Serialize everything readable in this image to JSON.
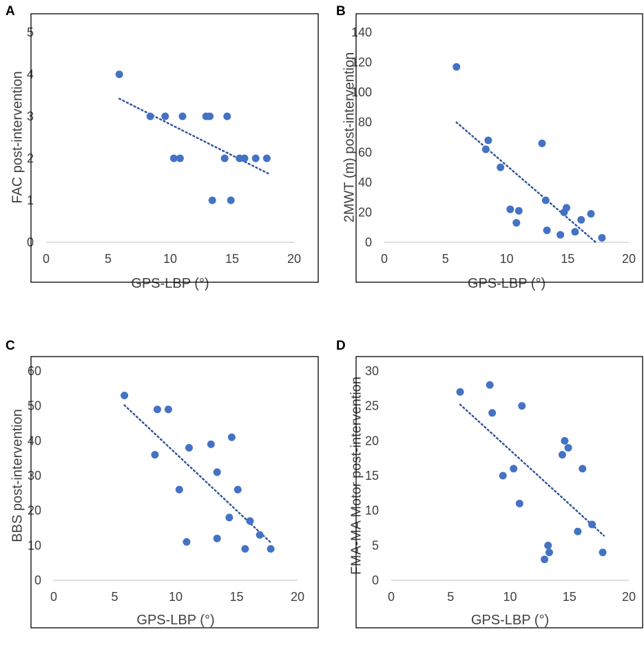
{
  "colors": {
    "point": "#4472C4",
    "trend": "#2F5597",
    "frame": "#000000",
    "text": "#404040",
    "panel_label": "#000000"
  },
  "chart_data": [
    {
      "id": "A",
      "type": "scatter",
      "panel_label": "A",
      "xlabel": "GPS-LBP (°)",
      "ylabel": "FAC post-intervention",
      "xlim": [
        0,
        20
      ],
      "ylim": [
        0,
        5
      ],
      "xticks": [
        "0",
        "5",
        "10",
        "15",
        "20"
      ],
      "yticks": [
        "0",
        "1",
        "2",
        "3",
        "4",
        "5"
      ],
      "points": [
        [
          5.9,
          4
        ],
        [
          8.4,
          3
        ],
        [
          9.6,
          3
        ],
        [
          10.3,
          2
        ],
        [
          10.8,
          2
        ],
        [
          11.0,
          3
        ],
        [
          12.9,
          3
        ],
        [
          13.2,
          3
        ],
        [
          13.4,
          1
        ],
        [
          14.4,
          2
        ],
        [
          14.6,
          3
        ],
        [
          14.9,
          1
        ],
        [
          15.6,
          2
        ],
        [
          16.0,
          2
        ],
        [
          16.9,
          2
        ],
        [
          17.8,
          2
        ]
      ],
      "trendline": {
        "x": [
          5.9,
          17.9
        ],
        "y": [
          3.42,
          1.64
        ]
      }
    },
    {
      "id": "B",
      "type": "scatter",
      "panel_label": "B",
      "xlabel": "GPS-LBP (°)",
      "ylabel": "2MWT (m) post-intervention",
      "xlim": [
        0,
        20
      ],
      "ylim": [
        0,
        140
      ],
      "xticks": [
        "0",
        "5",
        "10",
        "15",
        "20"
      ],
      "yticks": [
        "0",
        "20",
        "40",
        "60",
        "80",
        "100",
        "120",
        "140"
      ],
      "points": [
        [
          5.9,
          117
        ],
        [
          8.3,
          62
        ],
        [
          8.5,
          68
        ],
        [
          9.5,
          50
        ],
        [
          10.3,
          22
        ],
        [
          10.8,
          13
        ],
        [
          11.0,
          21
        ],
        [
          12.9,
          66
        ],
        [
          13.2,
          28
        ],
        [
          13.3,
          8
        ],
        [
          14.4,
          5
        ],
        [
          14.7,
          20
        ],
        [
          14.9,
          23
        ],
        [
          15.6,
          7
        ],
        [
          16.1,
          15
        ],
        [
          16.9,
          19
        ],
        [
          17.8,
          3
        ]
      ],
      "trendline": {
        "x": [
          5.9,
          17.3
        ],
        "y": [
          80,
          0
        ]
      }
    },
    {
      "id": "C",
      "type": "scatter",
      "panel_label": "C",
      "xlabel": "GPS-LBP (°)",
      "ylabel": "BBS post-intervention",
      "xlim": [
        0,
        20
      ],
      "ylim": [
        0,
        60
      ],
      "xticks": [
        "0",
        "5",
        "10",
        "15",
        "20"
      ],
      "yticks": [
        "0",
        "10",
        "20",
        "30",
        "40",
        "50",
        "60"
      ],
      "points": [
        [
          5.8,
          53
        ],
        [
          8.3,
          36
        ],
        [
          8.5,
          49
        ],
        [
          9.4,
          49
        ],
        [
          10.3,
          26
        ],
        [
          10.9,
          11
        ],
        [
          11.1,
          38
        ],
        [
          12.9,
          39
        ],
        [
          13.4,
          31
        ],
        [
          13.4,
          12
        ],
        [
          14.4,
          18
        ],
        [
          14.6,
          41
        ],
        [
          15.1,
          26
        ],
        [
          15.7,
          9
        ],
        [
          16.1,
          17
        ],
        [
          16.9,
          13
        ],
        [
          17.8,
          9
        ]
      ],
      "trendline": {
        "x": [
          5.8,
          17.9
        ],
        "y": [
          50.2,
          10.5
        ]
      }
    },
    {
      "id": "D",
      "type": "scatter",
      "panel_label": "D",
      "xlabel": "GPS-LBP (°)",
      "ylabel": "FMA-MA Motor post-intervention",
      "xlim": [
        0,
        20
      ],
      "ylim": [
        0,
        30
      ],
      "xticks": [
        "0",
        "5",
        "10",
        "15",
        "20"
      ],
      "yticks": [
        "0",
        "5",
        "10",
        "15",
        "20",
        "25",
        "30"
      ],
      "points": [
        [
          5.8,
          27
        ],
        [
          8.3,
          28
        ],
        [
          8.5,
          24
        ],
        [
          9.4,
          15
        ],
        [
          10.3,
          16
        ],
        [
          10.8,
          11
        ],
        [
          11.0,
          25
        ],
        [
          12.9,
          3
        ],
        [
          13.2,
          5
        ],
        [
          13.3,
          4
        ],
        [
          14.4,
          18
        ],
        [
          14.6,
          20
        ],
        [
          14.9,
          19
        ],
        [
          15.7,
          7
        ],
        [
          16.1,
          16
        ],
        [
          16.9,
          8
        ],
        [
          17.8,
          4
        ]
      ],
      "trendline": {
        "x": [
          5.8,
          17.9
        ],
        "y": [
          25.2,
          6.4
        ]
      }
    }
  ]
}
